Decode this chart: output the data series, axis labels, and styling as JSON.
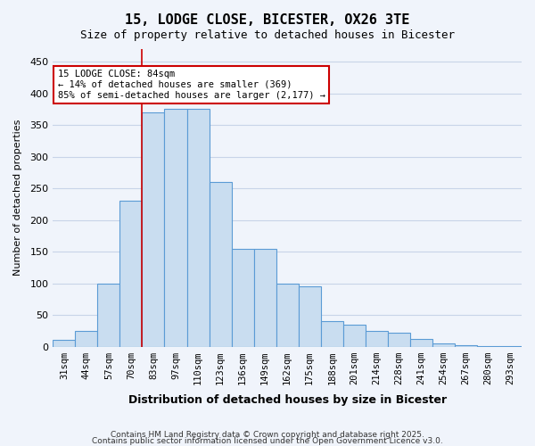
{
  "title": "15, LODGE CLOSE, BICESTER, OX26 3TE",
  "subtitle": "Size of property relative to detached houses in Bicester",
  "xlabel": "Distribution of detached houses by size in Bicester",
  "ylabel": "Number of detached properties",
  "bar_labels": [
    "31sqm",
    "44sqm",
    "57sqm",
    "70sqm",
    "83sqm",
    "97sqm",
    "110sqm",
    "123sqm",
    "136sqm",
    "149sqm",
    "162sqm",
    "175sqm",
    "188sqm",
    "201sqm",
    "214sqm",
    "228sqm",
    "241sqm",
    "254sqm",
    "267sqm",
    "280sqm",
    "293sqm"
  ],
  "bar_values": [
    10,
    25,
    100,
    230,
    370,
    375,
    375,
    260,
    155,
    155,
    100,
    95,
    40,
    35,
    25,
    22,
    12,
    5,
    2,
    1,
    1
  ],
  "bar_color": "#c9ddf0",
  "bar_edge_color": "#5b9bd5",
  "property_line_x": 4,
  "annotation_text": "15 LODGE CLOSE: 84sqm\n← 14% of detached houses are smaller (369)\n85% of semi-detached houses are larger (2,177) →",
  "annotation_box_color": "#ffffff",
  "annotation_box_edge": "#cc0000",
  "vline_color": "#cc0000",
  "ylim": [
    0,
    470
  ],
  "yticks": [
    0,
    50,
    100,
    150,
    200,
    250,
    300,
    350,
    400,
    450
  ],
  "footnote1": "Contains HM Land Registry data © Crown copyright and database right 2025.",
  "footnote2": "Contains public sector information licensed under the Open Government Licence v3.0.",
  "bg_color": "#f0f4fb",
  "grid_color": "#c8d4e8"
}
